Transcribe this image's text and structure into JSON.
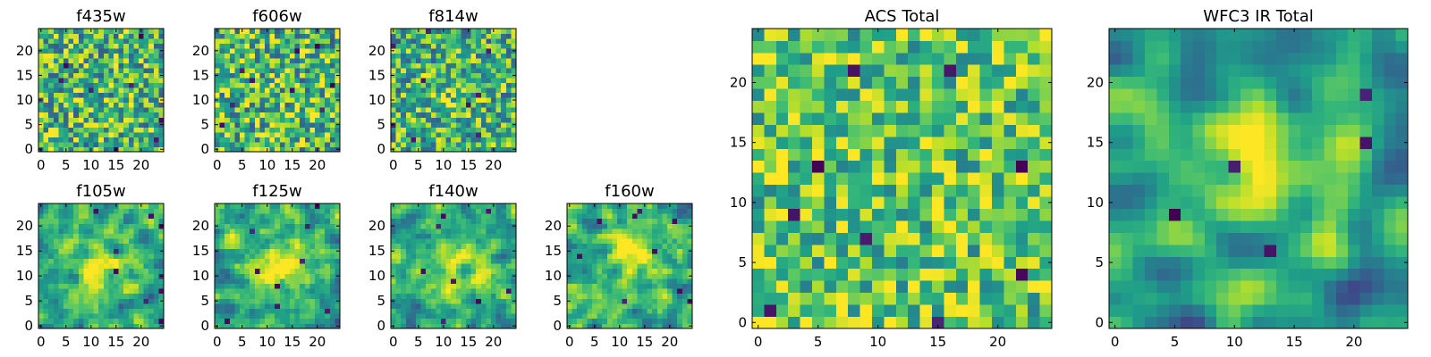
{
  "chart_data": [
    {
      "type": "heatmap",
      "title": "f435w",
      "x_ticks": [
        "0",
        "5",
        "10",
        "15",
        "20"
      ],
      "y_ticks": [
        "0",
        "5",
        "10",
        "15",
        "20"
      ],
      "grid_size": 25,
      "xlim": [
        -0.5,
        24.5
      ],
      "ylim": [
        -0.5,
        24.5
      ],
      "colormap": "viridis",
      "pattern": "noise",
      "seed": 11
    },
    {
      "type": "heatmap",
      "title": "f606w",
      "x_ticks": [
        "0",
        "5",
        "10",
        "15",
        "20"
      ],
      "y_ticks": [
        "0",
        "5",
        "10",
        "15",
        "20"
      ],
      "grid_size": 25,
      "xlim": [
        -0.5,
        24.5
      ],
      "ylim": [
        -0.5,
        24.5
      ],
      "colormap": "viridis",
      "pattern": "noise",
      "seed": 23
    },
    {
      "type": "heatmap",
      "title": "f814w",
      "x_ticks": [
        "0",
        "5",
        "10",
        "15",
        "20"
      ],
      "y_ticks": [
        "0",
        "5",
        "10",
        "15",
        "20"
      ],
      "grid_size": 25,
      "xlim": [
        -0.5,
        24.5
      ],
      "ylim": [
        -0.5,
        24.5
      ],
      "colormap": "viridis",
      "pattern": "faint-source",
      "seed": 37
    },
    {
      "type": "heatmap",
      "title": "f105w",
      "x_ticks": [
        "0",
        "5",
        "10",
        "15",
        "20"
      ],
      "y_ticks": [
        "0",
        "5",
        "10",
        "15",
        "20"
      ],
      "grid_size": 25,
      "xlim": [
        -0.5,
        24.5
      ],
      "ylim": [
        -0.5,
        24.5
      ],
      "colormap": "viridis",
      "pattern": "source",
      "seed": 41
    },
    {
      "type": "heatmap",
      "title": "f125w",
      "x_ticks": [
        "0",
        "5",
        "10",
        "15",
        "20"
      ],
      "y_ticks": [
        "0",
        "5",
        "10",
        "15",
        "20"
      ],
      "grid_size": 25,
      "xlim": [
        -0.5,
        24.5
      ],
      "ylim": [
        -0.5,
        24.5
      ],
      "colormap": "viridis",
      "pattern": "source",
      "seed": 53
    },
    {
      "type": "heatmap",
      "title": "f140w",
      "x_ticks": [
        "0",
        "5",
        "10",
        "15",
        "20"
      ],
      "y_ticks": [
        "0",
        "5",
        "10",
        "15",
        "20"
      ],
      "grid_size": 25,
      "xlim": [
        -0.5,
        24.5
      ],
      "ylim": [
        -0.5,
        24.5
      ],
      "colormap": "viridis",
      "pattern": "source",
      "seed": 67
    },
    {
      "type": "heatmap",
      "title": "f160w",
      "x_ticks": [
        "0",
        "5",
        "10",
        "15",
        "20"
      ],
      "y_ticks": [
        "0",
        "5",
        "10",
        "15",
        "20"
      ],
      "grid_size": 25,
      "xlim": [
        -0.5,
        24.5
      ],
      "ylim": [
        -0.5,
        24.5
      ],
      "colormap": "viridis",
      "pattern": "source",
      "seed": 79
    },
    {
      "type": "heatmap",
      "title": "ACS Total",
      "x_ticks": [
        "0",
        "5",
        "10",
        "15",
        "20"
      ],
      "y_ticks": [
        "0",
        "5",
        "10",
        "15",
        "20"
      ],
      "grid_size": 25,
      "xlim": [
        -0.5,
        24.5
      ],
      "ylim": [
        -0.5,
        24.5
      ],
      "colormap": "viridis",
      "pattern": "noise-bright",
      "seed": 83
    },
    {
      "type": "heatmap",
      "title": "WFC3 IR Total",
      "x_ticks": [
        "0",
        "5",
        "10",
        "15",
        "20"
      ],
      "y_ticks": [
        "0",
        "5",
        "10",
        "15",
        "20"
      ],
      "grid_size": 25,
      "xlim": [
        -0.5,
        24.5
      ],
      "ylim": [
        -0.5,
        24.5
      ],
      "colormap": "viridis",
      "pattern": "strong-source",
      "seed": 97
    }
  ]
}
